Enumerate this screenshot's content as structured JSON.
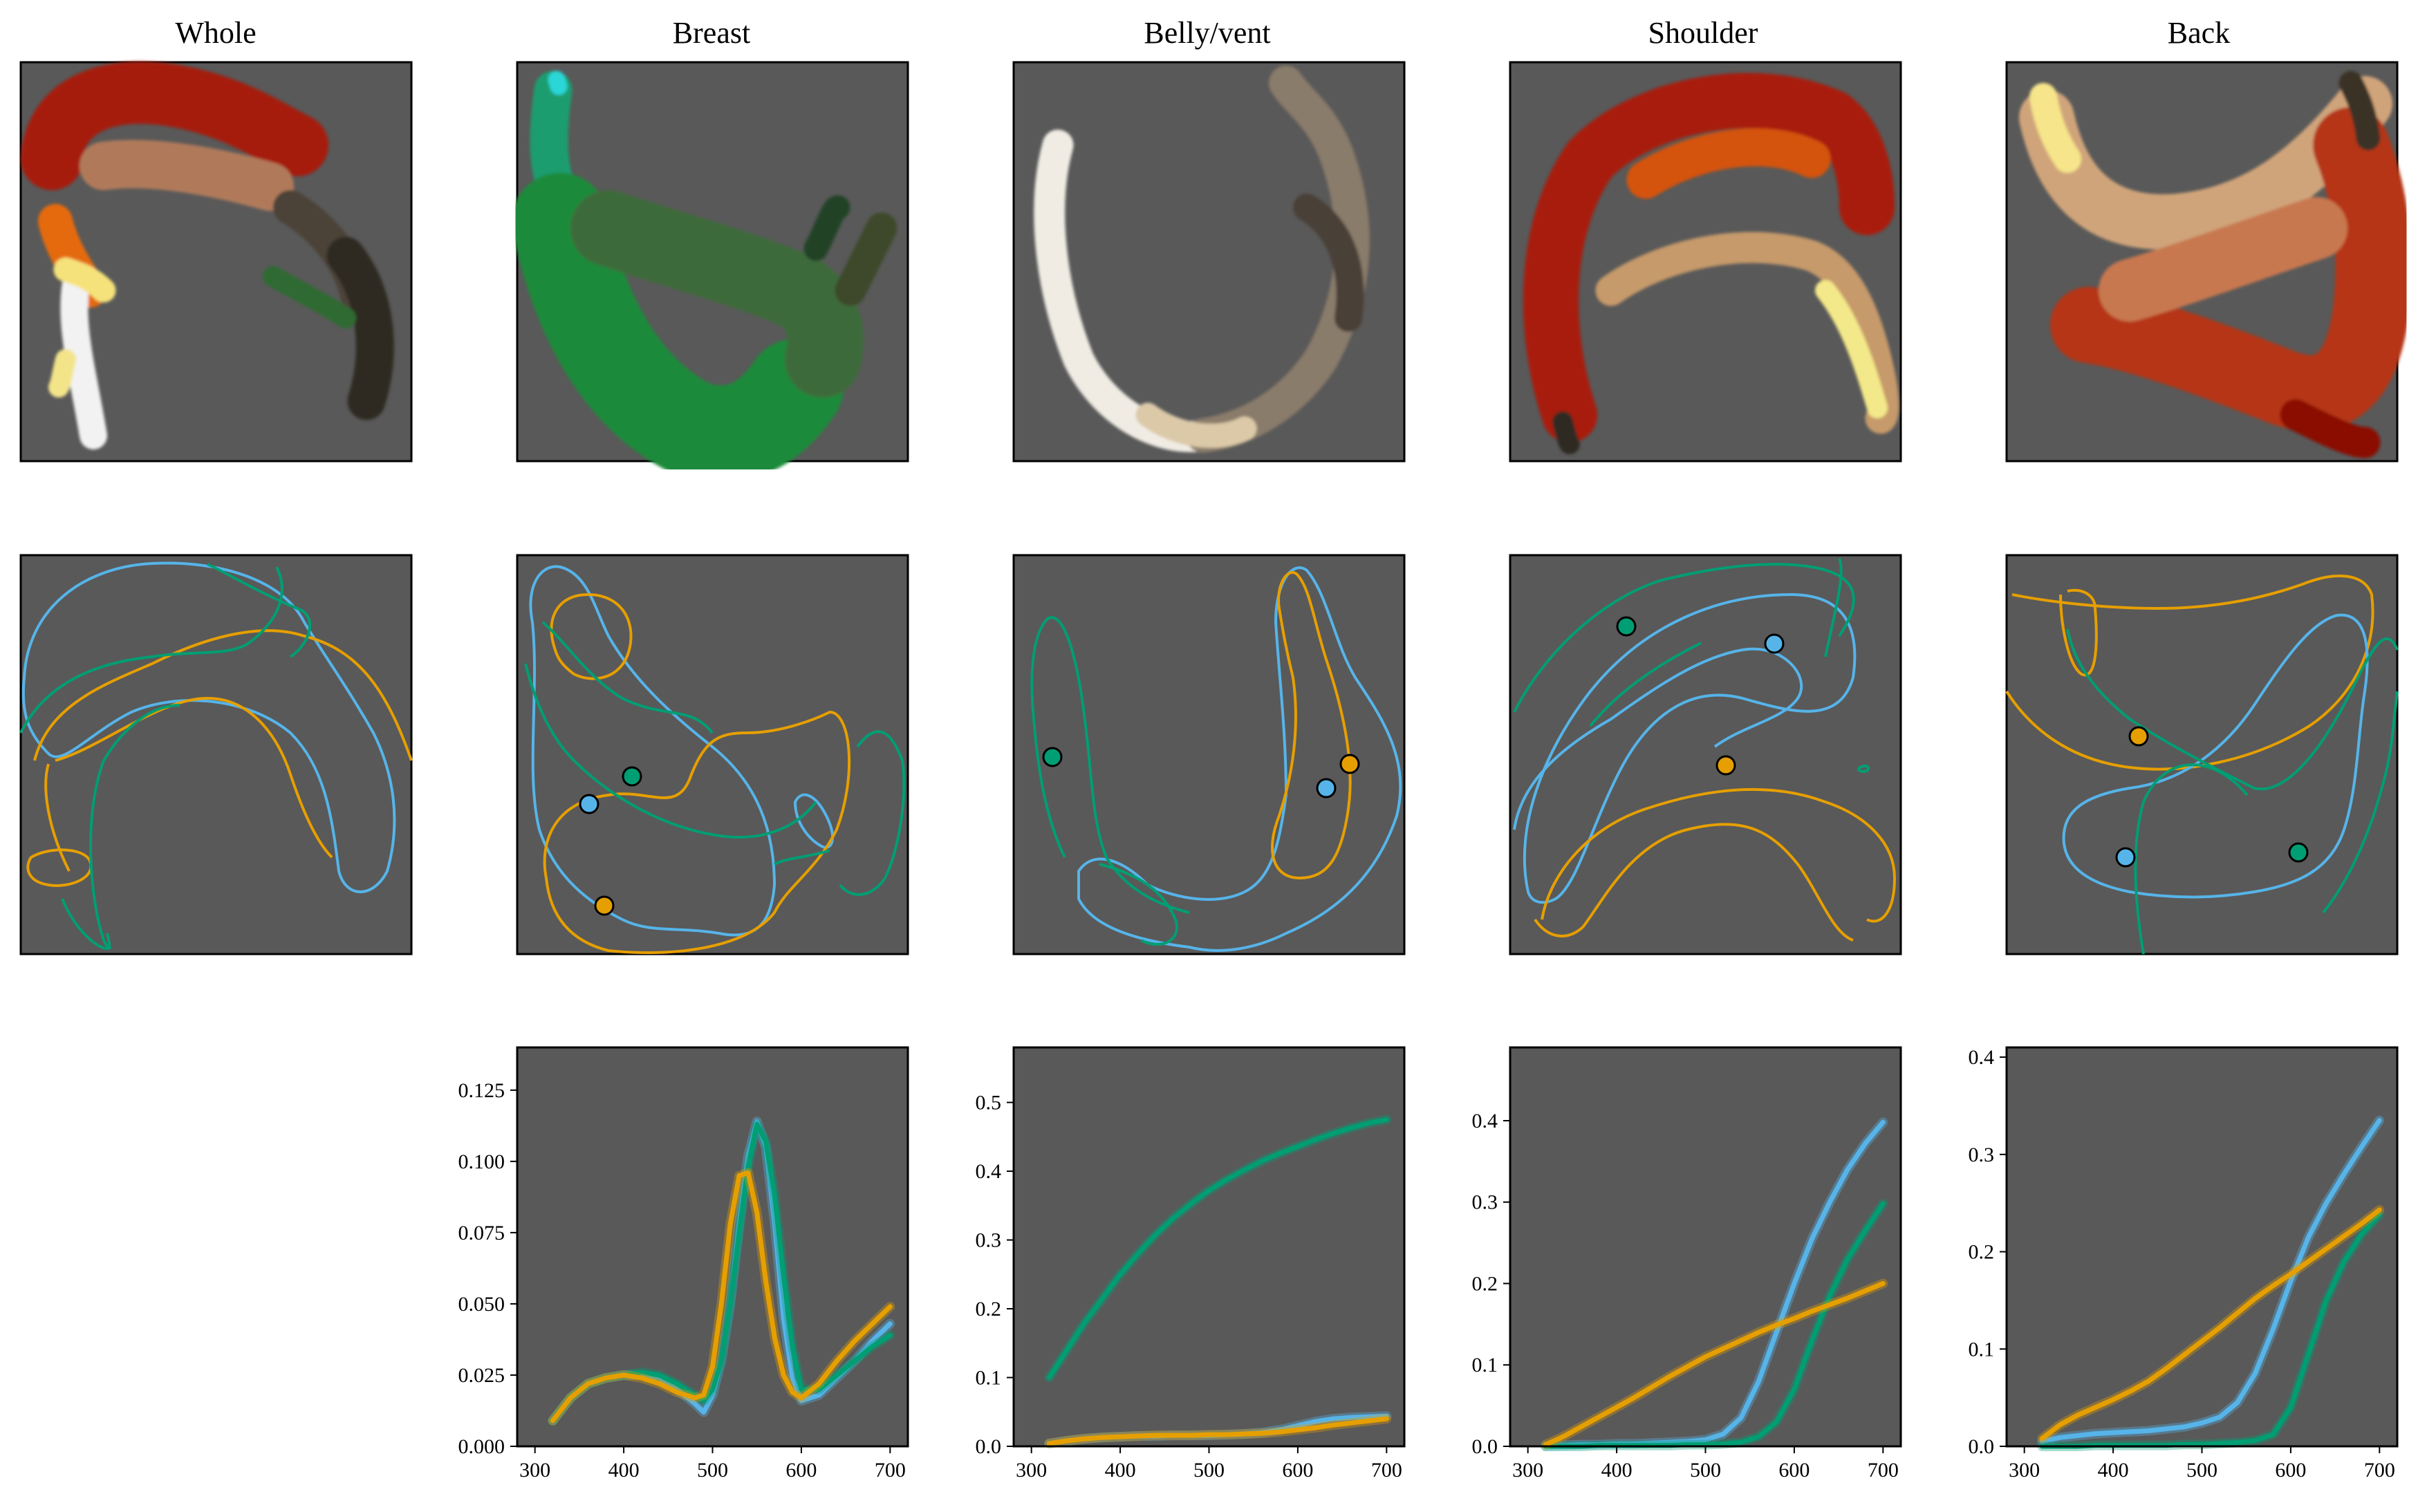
{
  "titles": [
    "Whole",
    "Breast",
    "Belly/vent",
    "Shoulder",
    "Back"
  ],
  "colors": {
    "panel_bg": "#595959",
    "blue": "#56B4E9",
    "orange": "#E69F00",
    "green": "#009E73"
  },
  "chart_data": [
    {
      "type": "line",
      "title": "Breast",
      "xlabel": "",
      "ylabel": "",
      "xlim": [
        280,
        720
      ],
      "ylim": [
        0,
        0.14
      ],
      "xticks": [
        300,
        400,
        500,
        600,
        700
      ],
      "yticks": [
        0.0,
        0.025,
        0.05,
        0.075,
        0.1,
        0.125
      ],
      "ytick_labels": [
        "0.000",
        "0.025",
        "0.050",
        "0.075",
        "0.100",
        "0.125"
      ],
      "x": [
        320,
        340,
        360,
        380,
        400,
        420,
        440,
        460,
        480,
        490,
        500,
        510,
        520,
        530,
        540,
        550,
        560,
        570,
        580,
        590,
        600,
        620,
        640,
        660,
        680,
        700
      ],
      "series": [
        {
          "color": "#56B4E9",
          "values": [
            0.009,
            0.017,
            0.022,
            0.024,
            0.025,
            0.025,
            0.024,
            0.02,
            0.015,
            0.012,
            0.018,
            0.03,
            0.05,
            0.078,
            0.102,
            0.114,
            0.105,
            0.078,
            0.045,
            0.024,
            0.016,
            0.018,
            0.024,
            0.03,
            0.037,
            0.043
          ]
        },
        {
          "color": "#009E73",
          "values": [
            0.009,
            0.017,
            0.022,
            0.024,
            0.025,
            0.026,
            0.025,
            0.022,
            0.018,
            0.016,
            0.02,
            0.03,
            0.05,
            0.075,
            0.098,
            0.113,
            0.107,
            0.088,
            0.06,
            0.035,
            0.02,
            0.02,
            0.025,
            0.03,
            0.035,
            0.039
          ]
        },
        {
          "color": "#E69F00",
          "values": [
            0.009,
            0.017,
            0.022,
            0.024,
            0.025,
            0.024,
            0.022,
            0.019,
            0.017,
            0.018,
            0.028,
            0.05,
            0.078,
            0.095,
            0.096,
            0.082,
            0.058,
            0.038,
            0.025,
            0.019,
            0.017,
            0.022,
            0.03,
            0.037,
            0.043,
            0.049
          ]
        }
      ]
    },
    {
      "type": "line",
      "title": "Belly/vent",
      "xlabel": "",
      "ylabel": "",
      "xlim": [
        280,
        720
      ],
      "ylim": [
        0,
        0.58
      ],
      "xticks": [
        300,
        400,
        500,
        600,
        700
      ],
      "yticks": [
        0.0,
        0.1,
        0.2,
        0.3,
        0.4,
        0.5
      ],
      "ytick_labels": [
        "0.0",
        "0.1",
        "0.2",
        "0.3",
        "0.4",
        "0.5"
      ],
      "x": [
        320,
        340,
        360,
        380,
        400,
        420,
        440,
        460,
        480,
        500,
        520,
        540,
        560,
        580,
        600,
        620,
        640,
        660,
        680,
        700
      ],
      "series": [
        {
          "color": "#009E73",
          "values": [
            0.1,
            0.14,
            0.18,
            0.215,
            0.25,
            0.28,
            0.308,
            0.332,
            0.353,
            0.372,
            0.388,
            0.402,
            0.415,
            0.426,
            0.436,
            0.446,
            0.455,
            0.463,
            0.47,
            0.475
          ]
        },
        {
          "color": "#56B4E9",
          "values": [
            0.004,
            0.008,
            0.011,
            0.013,
            0.014,
            0.015,
            0.015,
            0.016,
            0.016,
            0.016,
            0.017,
            0.018,
            0.02,
            0.024,
            0.03,
            0.036,
            0.04,
            0.042,
            0.043,
            0.044
          ]
        },
        {
          "color": "#E69F00",
          "values": [
            0.004,
            0.008,
            0.011,
            0.013,
            0.014,
            0.015,
            0.016,
            0.016,
            0.016,
            0.017,
            0.017,
            0.018,
            0.019,
            0.021,
            0.024,
            0.027,
            0.031,
            0.034,
            0.037,
            0.04
          ]
        }
      ]
    },
    {
      "type": "line",
      "title": "Shoulder",
      "xlabel": "",
      "ylabel": "",
      "xlim": [
        280,
        720
      ],
      "ylim": [
        0,
        0.49
      ],
      "xticks": [
        300,
        400,
        500,
        600,
        700
      ],
      "yticks": [
        0.0,
        0.1,
        0.2,
        0.3,
        0.4
      ],
      "ytick_labels": [
        "0.0",
        "0.1",
        "0.2",
        "0.3",
        "0.4"
      ],
      "x": [
        320,
        340,
        360,
        380,
        400,
        420,
        440,
        460,
        480,
        500,
        520,
        540,
        560,
        580,
        600,
        620,
        640,
        660,
        680,
        700
      ],
      "series": [
        {
          "color": "#56B4E9",
          "values": [
            0.0,
            0.001,
            0.002,
            0.002,
            0.003,
            0.003,
            0.004,
            0.005,
            0.006,
            0.008,
            0.015,
            0.035,
            0.08,
            0.14,
            0.2,
            0.255,
            0.3,
            0.34,
            0.372,
            0.398
          ]
        },
        {
          "color": "#009E73",
          "values": [
            0.0,
            0.0,
            0.0,
            0.001,
            0.001,
            0.001,
            0.001,
            0.001,
            0.002,
            0.002,
            0.003,
            0.005,
            0.012,
            0.03,
            0.07,
            0.13,
            0.185,
            0.23,
            0.265,
            0.298
          ]
        },
        {
          "color": "#E69F00",
          "values": [
            0.002,
            0.012,
            0.024,
            0.036,
            0.048,
            0.06,
            0.073,
            0.086,
            0.098,
            0.11,
            0.12,
            0.13,
            0.14,
            0.149,
            0.157,
            0.166,
            0.174,
            0.182,
            0.191,
            0.2
          ]
        }
      ]
    },
    {
      "type": "line",
      "title": "Back",
      "xlabel": "",
      "ylabel": "",
      "xlim": [
        280,
        720
      ],
      "ylim": [
        0,
        0.41
      ],
      "xticks": [
        300,
        400,
        500,
        600,
        700
      ],
      "yticks": [
        0.0,
        0.1,
        0.2,
        0.3,
        0.4
      ],
      "ytick_labels": [
        "0.0",
        "0.1",
        "0.2",
        "0.3",
        "0.4"
      ],
      "x": [
        320,
        340,
        360,
        380,
        400,
        420,
        440,
        460,
        480,
        500,
        520,
        540,
        560,
        580,
        600,
        620,
        640,
        660,
        680,
        700
      ],
      "series": [
        {
          "color": "#56B4E9",
          "values": [
            0.005,
            0.009,
            0.011,
            0.013,
            0.014,
            0.015,
            0.016,
            0.018,
            0.02,
            0.024,
            0.03,
            0.045,
            0.075,
            0.12,
            0.17,
            0.215,
            0.25,
            0.28,
            0.308,
            0.335
          ]
        },
        {
          "color": "#009E73",
          "values": [
            0.0,
            0.0,
            0.0,
            0.001,
            0.001,
            0.001,
            0.001,
            0.001,
            0.002,
            0.002,
            0.003,
            0.004,
            0.006,
            0.012,
            0.04,
            0.095,
            0.15,
            0.19,
            0.218,
            0.238
          ]
        },
        {
          "color": "#E69F00",
          "values": [
            0.008,
            0.022,
            0.032,
            0.04,
            0.048,
            0.057,
            0.067,
            0.08,
            0.094,
            0.108,
            0.122,
            0.137,
            0.152,
            0.165,
            0.177,
            0.19,
            0.203,
            0.216,
            0.229,
            0.243
          ]
        }
      ]
    }
  ]
}
